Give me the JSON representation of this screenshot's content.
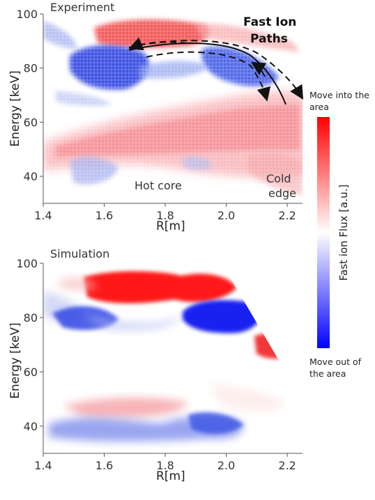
{
  "chart_data": [
    {
      "type": "heatmap",
      "title": "Experiment",
      "xlabel": "R[m]",
      "ylabel": "Energy [keV]",
      "xlim": [
        1.4,
        2.25
      ],
      "ylim": [
        30,
        100
      ],
      "xticks": [
        "1.4",
        "1.6",
        "1.8",
        "2.0",
        "2.2"
      ],
      "xtick_values": [
        1.4,
        1.6,
        1.8,
        2.0,
        2.2
      ],
      "yticks": [
        "40",
        "60",
        "80",
        "100"
      ],
      "ytick_values": [
        40,
        60,
        80,
        100
      ],
      "regions": [
        {
          "sign": "positive",
          "r": [
            1.6,
            1.9
          ],
          "e": [
            86,
            96
          ]
        },
        {
          "sign": "negative",
          "r": [
            1.5,
            1.75
          ],
          "e": [
            70,
            86
          ]
        },
        {
          "sign": "negative",
          "r": [
            1.9,
            2.15
          ],
          "e": [
            74,
            88
          ]
        },
        {
          "sign": "positive",
          "r": [
            1.45,
            2.25
          ],
          "e": [
            48,
            70
          ]
        },
        {
          "sign": "negative",
          "r": [
            1.5,
            1.7
          ],
          "e": [
            34,
            45
          ]
        }
      ],
      "annotations": [
        "Fast Ion Paths",
        "Hot core",
        "Cold edge"
      ]
    },
    {
      "type": "heatmap",
      "title": "Simulation",
      "xlabel": "R[m]",
      "ylabel": "Energy [keV]",
      "xlim": [
        1.4,
        2.25
      ],
      "ylim": [
        30,
        100
      ],
      "xticks": [
        "1.4",
        "1.6",
        "1.8",
        "2.0",
        "2.2"
      ],
      "xtick_values": [
        1.4,
        1.6,
        1.8,
        2.0,
        2.2
      ],
      "yticks": [
        "40",
        "60",
        "80",
        "100"
      ],
      "ytick_values": [
        40,
        60,
        80,
        100
      ],
      "regions": [
        {
          "sign": "positive",
          "r": [
            1.65,
            1.98
          ],
          "e": [
            83,
            94
          ]
        },
        {
          "sign": "negative",
          "r": [
            1.5,
            1.7
          ],
          "e": [
            74,
            84
          ]
        },
        {
          "sign": "negative",
          "r": [
            1.88,
            2.08
          ],
          "e": [
            72,
            86
          ]
        },
        {
          "sign": "positive",
          "r": [
            2.05,
            2.2
          ],
          "e": [
            62,
            76
          ]
        },
        {
          "sign": "positive",
          "r": [
            1.5,
            1.85
          ],
          "e": [
            41,
            50
          ]
        },
        {
          "sign": "negative",
          "r": [
            1.5,
            2.1
          ],
          "e": [
            32,
            43
          ]
        }
      ]
    }
  ],
  "colorbar": {
    "title": "Fast ion Flux [a.u.]",
    "top_label": "Move into the area",
    "bottom_label": "Move out of the area",
    "colors": {
      "positive": "#ff0000",
      "zero": "#ffffff",
      "negative": "#0000ff"
    }
  }
}
